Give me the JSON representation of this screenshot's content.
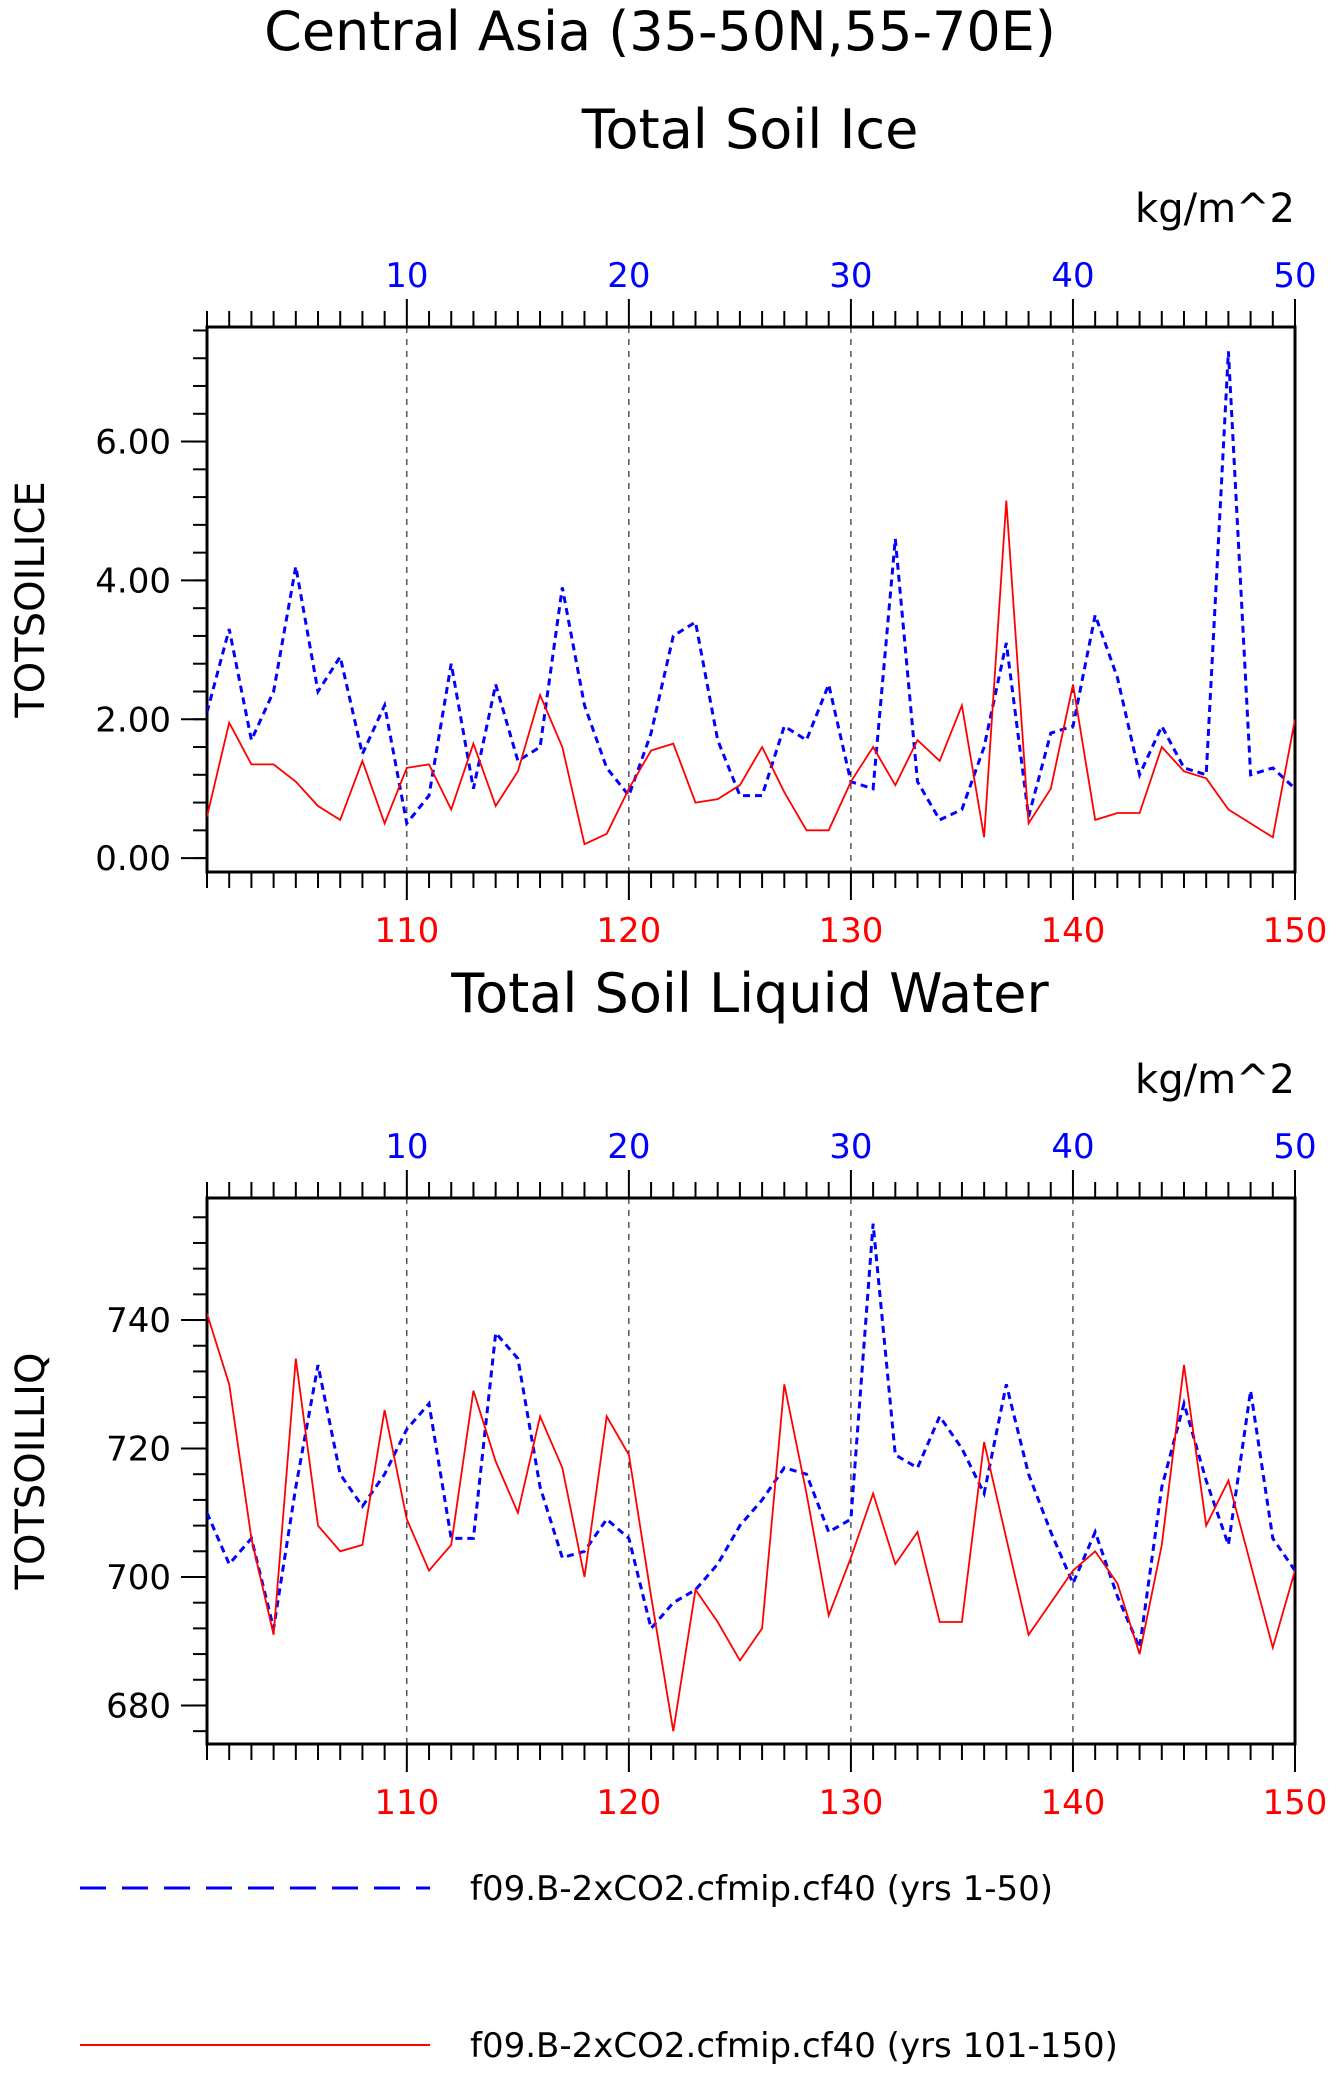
{
  "header": {
    "title_line1": "Central Asia (35-50N,55-70E)"
  },
  "legend": {
    "entries": [
      {
        "label": "f09.B-2xCO2.cfmip.cf40 (yrs 1-50)",
        "color": "#0000ff",
        "style": "dashed"
      },
      {
        "label": "f09.B-2xCO2.cfmip.cf40 (yrs 101-150)",
        "color": "#ff0000",
        "style": "solid"
      }
    ]
  },
  "chart_data": [
    {
      "type": "line",
      "title": "Total Soil Ice",
      "ylabel": "TOTSOILICE",
      "units": "kg/m^2",
      "ylim": [
        -0.2,
        7.65
      ],
      "y_ticks": [
        "0.00",
        "2.00",
        "4.00",
        "6.00"
      ],
      "y_tick_values": [
        0,
        2,
        4,
        6
      ],
      "y_minor_step": 0.4,
      "top_axis": {
        "range": [
          1,
          50
        ],
        "ticks": [
          10,
          20,
          30,
          40,
          50
        ],
        "color": "#0000ff"
      },
      "bottom_axis": {
        "range": [
          101,
          150
        ],
        "ticks": [
          110,
          120,
          130,
          140,
          150
        ],
        "color": "#ff0000"
      },
      "grid": "vertical dashed at major ticks",
      "series": [
        {
          "axis": "top",
          "color": "#0000ff",
          "style": "dashed",
          "x_start": 1,
          "values": [
            2.1,
            3.3,
            1.7,
            2.4,
            4.2,
            2.4,
            2.9,
            1.5,
            2.2,
            0.5,
            0.9,
            2.8,
            1.0,
            2.5,
            1.4,
            1.6,
            3.9,
            2.2,
            1.3,
            0.9,
            1.8,
            3.2,
            3.4,
            1.7,
            0.9,
            0.9,
            1.9,
            1.7,
            2.5,
            1.1,
            1.0,
            4.6,
            1.1,
            0.55,
            0.7,
            1.6,
            3.1,
            0.6,
            1.8,
            1.9,
            3.5,
            2.6,
            1.2,
            1.9,
            1.3,
            1.2,
            7.3,
            1.2,
            1.3,
            1.0
          ]
        },
        {
          "axis": "bottom",
          "color": "#ff0000",
          "style": "solid",
          "x_start": 101,
          "values": [
            0.6,
            1.95,
            1.35,
            1.35,
            1.1,
            0.75,
            0.55,
            1.4,
            0.5,
            1.3,
            1.35,
            0.7,
            1.65,
            0.75,
            1.25,
            2.35,
            1.6,
            0.2,
            0.35,
            1.0,
            1.55,
            1.65,
            0.8,
            0.85,
            1.05,
            1.6,
            0.95,
            0.4,
            0.4,
            1.1,
            1.6,
            1.05,
            1.7,
            1.4,
            2.2,
            0.3,
            5.15,
            0.5,
            1.0,
            2.5,
            0.55,
            0.65,
            0.65,
            1.6,
            1.25,
            1.15,
            0.7,
            0.5,
            0.3,
            2.0
          ]
        }
      ]
    },
    {
      "type": "line",
      "title": "Total Soil Liquid Water",
      "ylabel": "TOTSOILLIQ",
      "units": "kg/m^2",
      "ylim": [
        674,
        759
      ],
      "y_ticks": [
        "680",
        "700",
        "720",
        "740"
      ],
      "y_tick_values": [
        680,
        700,
        720,
        740
      ],
      "y_minor_step": 4,
      "top_axis": {
        "range": [
          1,
          50
        ],
        "ticks": [
          10,
          20,
          30,
          40,
          50
        ],
        "color": "#0000ff"
      },
      "bottom_axis": {
        "range": [
          101,
          150
        ],
        "ticks": [
          110,
          120,
          130,
          140,
          150
        ],
        "color": "#ff0000"
      },
      "grid": "vertical dashed at major ticks",
      "series": [
        {
          "axis": "top",
          "color": "#0000ff",
          "style": "dashed",
          "x_start": 1,
          "values": [
            710,
            702,
            706,
            692,
            714,
            733,
            716,
            711,
            716,
            723,
            727,
            706,
            706,
            738,
            734,
            714,
            703,
            704,
            709,
            706,
            692,
            696,
            698,
            702,
            708,
            712,
            717,
            716,
            707,
            709,
            755,
            719,
            717,
            725,
            720,
            713,
            730,
            716,
            707,
            699,
            707,
            697,
            689,
            714,
            727,
            715,
            705,
            729,
            706,
            701
          ]
        },
        {
          "axis": "bottom",
          "color": "#ff0000",
          "style": "solid",
          "x_start": 101,
          "values": [
            741,
            730,
            706,
            691,
            734,
            708,
            704,
            705,
            726,
            709,
            701,
            705,
            729,
            718,
            710,
            725,
            717,
            700,
            725,
            719,
            697,
            676,
            698,
            693,
            687,
            692,
            730,
            713,
            694,
            703,
            713,
            702,
            707,
            693,
            693,
            721,
            706,
            691,
            696,
            701,
            704,
            699,
            688,
            705,
            733,
            708,
            715,
            702,
            689,
            701
          ]
        }
      ]
    }
  ]
}
